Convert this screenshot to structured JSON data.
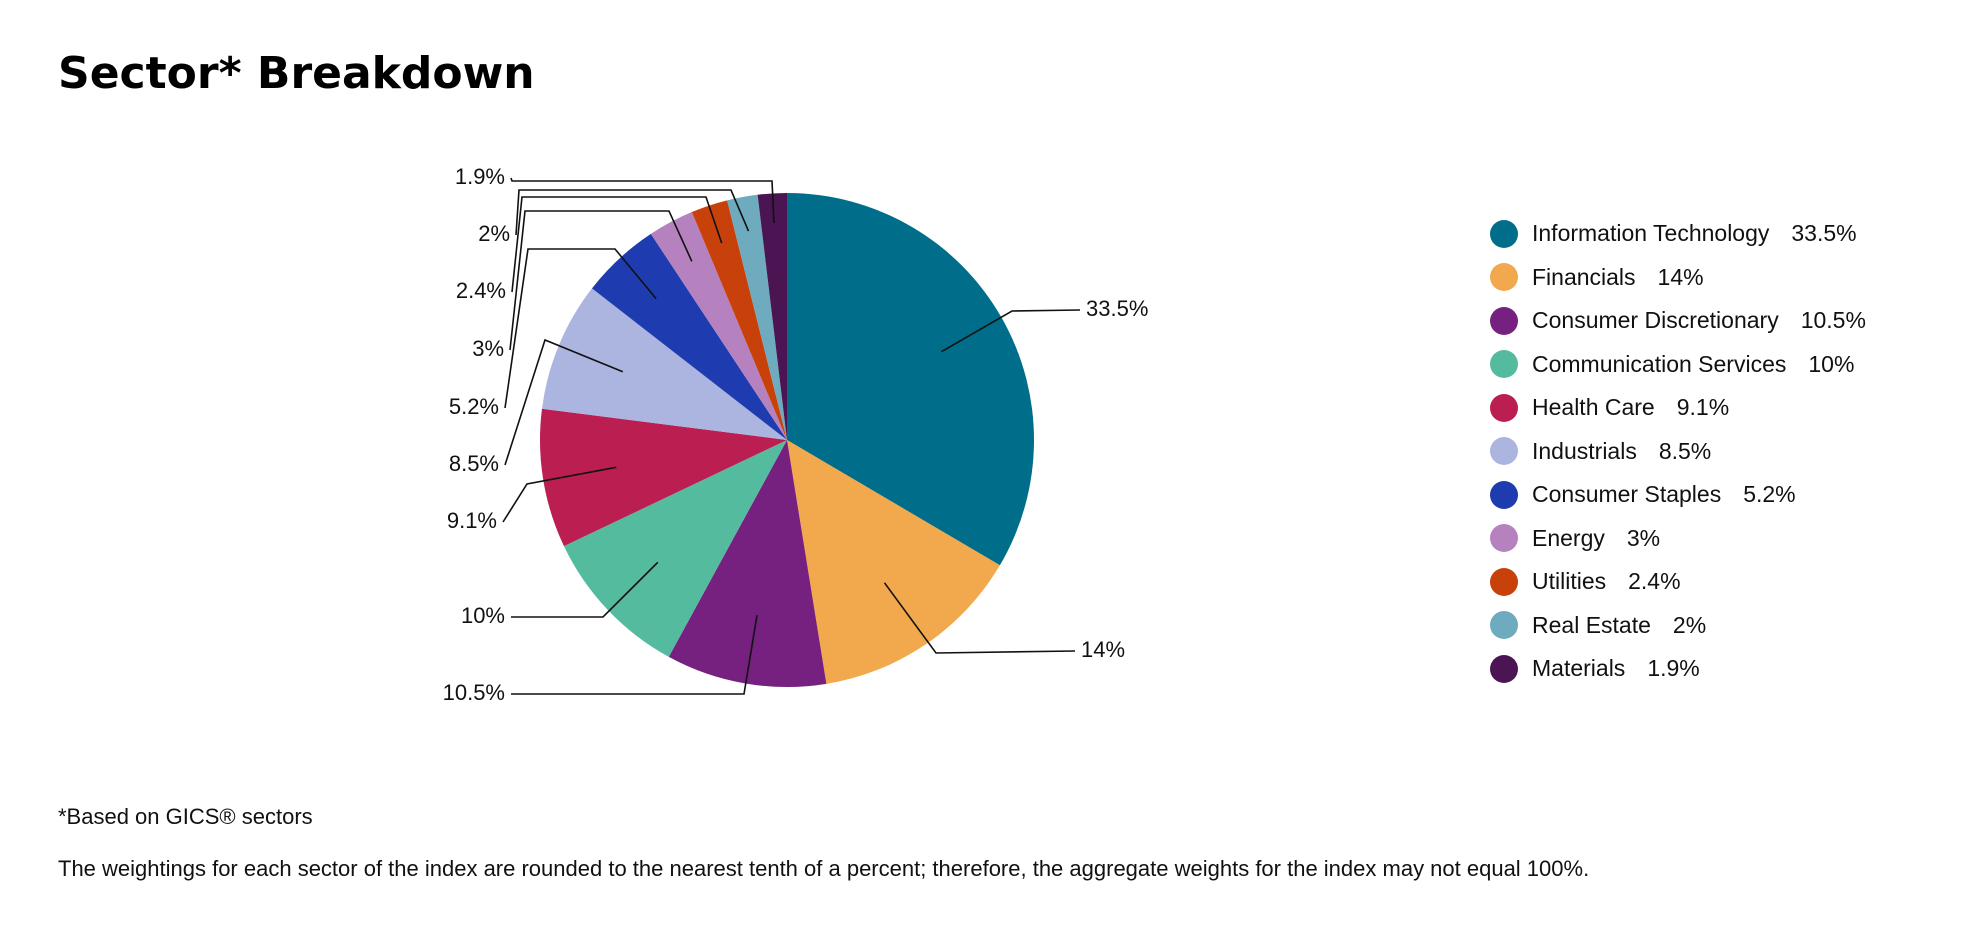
{
  "title": "Sector* Breakdown",
  "chart_data": {
    "type": "pie",
    "title": "Sector* Breakdown",
    "start_angle": "12 o'clock, clockwise",
    "legend_position": "right",
    "slices": [
      {
        "name": "Information Technology",
        "value": 33.5,
        "label": "33.5%",
        "color": "#006e8a"
      },
      {
        "name": "Financials",
        "value": 14,
        "label": "14%",
        "color": "#f2a84c"
      },
      {
        "name": "Consumer Discretionary",
        "value": 10.5,
        "label": "10.5%",
        "color": "#76207f"
      },
      {
        "name": "Communication Services",
        "value": 10,
        "label": "10%",
        "color": "#55bb9f"
      },
      {
        "name": "Health Care",
        "value": 9.1,
        "label": "9.1%",
        "color": "#bb1f52"
      },
      {
        "name": "Industrials",
        "value": 8.5,
        "label": "8.5%",
        "color": "#acb5e0"
      },
      {
        "name": "Consumer Staples",
        "value": 5.2,
        "label": "5.2%",
        "color": "#1f3bb0"
      },
      {
        "name": "Energy",
        "value": 3,
        "label": "3%",
        "color": "#b581bf"
      },
      {
        "name": "Utilities",
        "value": 2.4,
        "label": "2.4%",
        "color": "#c8410a"
      },
      {
        "name": "Real Estate",
        "value": 2,
        "label": "2%",
        "color": "#6eabbe"
      },
      {
        "name": "Materials",
        "value": 1.9,
        "label": "1.9%",
        "color": "#4a1552"
      }
    ]
  },
  "legend": [
    {
      "name": "Information Technology",
      "value": "33.5%"
    },
    {
      "name": "Financials",
      "value": "14%"
    },
    {
      "name": "Consumer Discretionary",
      "value": "10.5%"
    },
    {
      "name": "Communication Services",
      "value": "10%"
    },
    {
      "name": "Health Care",
      "value": "9.1%"
    },
    {
      "name": "Industrials",
      "value": "8.5%"
    },
    {
      "name": "Consumer Staples",
      "value": "5.2%"
    },
    {
      "name": "Energy",
      "value": "3%"
    },
    {
      "name": "Utilities",
      "value": "2.4%"
    },
    {
      "name": "Real Estate",
      "value": "2%"
    },
    {
      "name": "Materials",
      "value": "1.9%"
    }
  ],
  "notes": {
    "gics": "*Based on GICS® sectors",
    "rounding": "The weightings for each sector of the index are rounded to the nearest tenth of a percent; therefore, the aggregate weights for the index may not equal 100%."
  }
}
